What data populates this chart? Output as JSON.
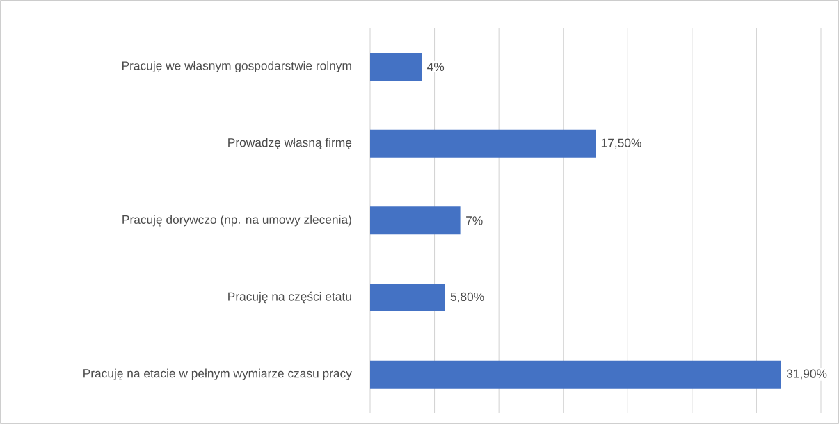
{
  "chart_data": {
    "type": "bar",
    "orientation": "horizontal",
    "categories": [
      "Pracuję we własnym gospodarstwie rolnym",
      "Prowadzę własną firmę",
      "Pracuję dorywczo (np. na umowy zlecenia)",
      "Pracuję na części etatu",
      "Pracuję na etacie w pełnym wymiarze czasu pracy"
    ],
    "values": [
      4,
      17.5,
      7,
      5.8,
      31.9
    ],
    "value_labels": [
      "4%",
      "17,50%",
      "7%",
      "5,80%",
      "31,90%"
    ],
    "color": "#4472c4",
    "xlim": [
      0,
      35
    ],
    "xticks": [
      {
        "value": 0,
        "label": null
      },
      {
        "value": 5,
        "label": null
      },
      {
        "value": 10,
        "label": null
      },
      {
        "value": 15,
        "label": null
      },
      {
        "value": 20,
        "label": null
      },
      {
        "value": 25,
        "label": null
      },
      {
        "value": 30,
        "label": null
      },
      {
        "value": 35,
        "label": null
      }
    ],
    "grid": "x"
  }
}
